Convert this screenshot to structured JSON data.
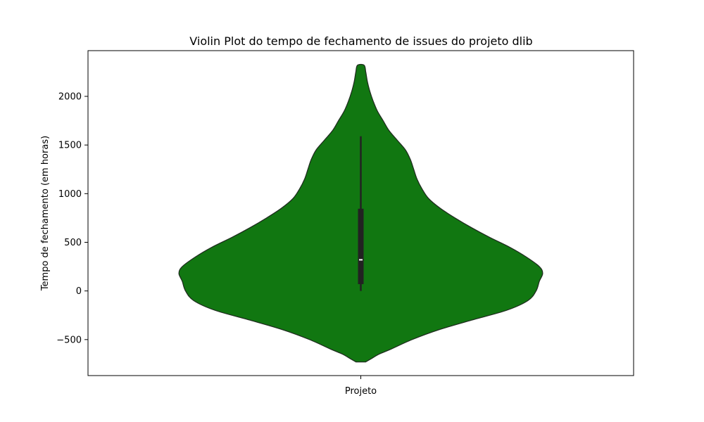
{
  "chart_data": {
    "type": "violin",
    "title": "Violin Plot do tempo de fechamento de issues do projeto dlib",
    "xlabel": "Projeto",
    "ylabel": "Tempo de fechamento (em horas)",
    "categories": [
      ""
    ],
    "ylim": [
      -870,
      2470
    ],
    "yticks": [
      -500,
      0,
      500,
      1000,
      1500,
      2000
    ],
    "grid": false,
    "fill_color": "#117711",
    "edge_color": "#1f2d1f",
    "box_color": "#222222",
    "median_color": "#ffffff",
    "violin": {
      "y_min": -730,
      "y_max": 2320,
      "max_half_width": 0.8,
      "density": [
        [
          -730,
          0.029
        ],
        [
          -700,
          0.06
        ],
        [
          -650,
          0.11
        ],
        [
          -600,
          0.18
        ],
        [
          -500,
          0.31
        ],
        [
          -400,
          0.47
        ],
        [
          -300,
          0.67
        ],
        [
          -200,
          0.88
        ],
        [
          -100,
          1.01
        ],
        [
          0,
          1.06
        ],
        [
          100,
          1.08
        ],
        [
          180,
          1.1
        ],
        [
          250,
          1.08
        ],
        [
          350,
          1.0
        ],
        [
          450,
          0.9
        ],
        [
          550,
          0.78
        ],
        [
          650,
          0.67
        ],
        [
          750,
          0.57
        ],
        [
          850,
          0.48
        ],
        [
          950,
          0.41
        ],
        [
          1050,
          0.37
        ],
        [
          1150,
          0.34
        ],
        [
          1250,
          0.32
        ],
        [
          1350,
          0.3
        ],
        [
          1450,
          0.27
        ],
        [
          1550,
          0.22
        ],
        [
          1650,
          0.17
        ],
        [
          1750,
          0.135
        ],
        [
          1850,
          0.1
        ],
        [
          1950,
          0.075
        ],
        [
          2050,
          0.055
        ],
        [
          2150,
          0.04
        ],
        [
          2250,
          0.03
        ],
        [
          2320,
          0.02
        ]
      ]
    },
    "box": {
      "whisker_low": 0,
      "q1": 70,
      "median": 320,
      "q3": 845,
      "whisker_high": 1590
    }
  }
}
